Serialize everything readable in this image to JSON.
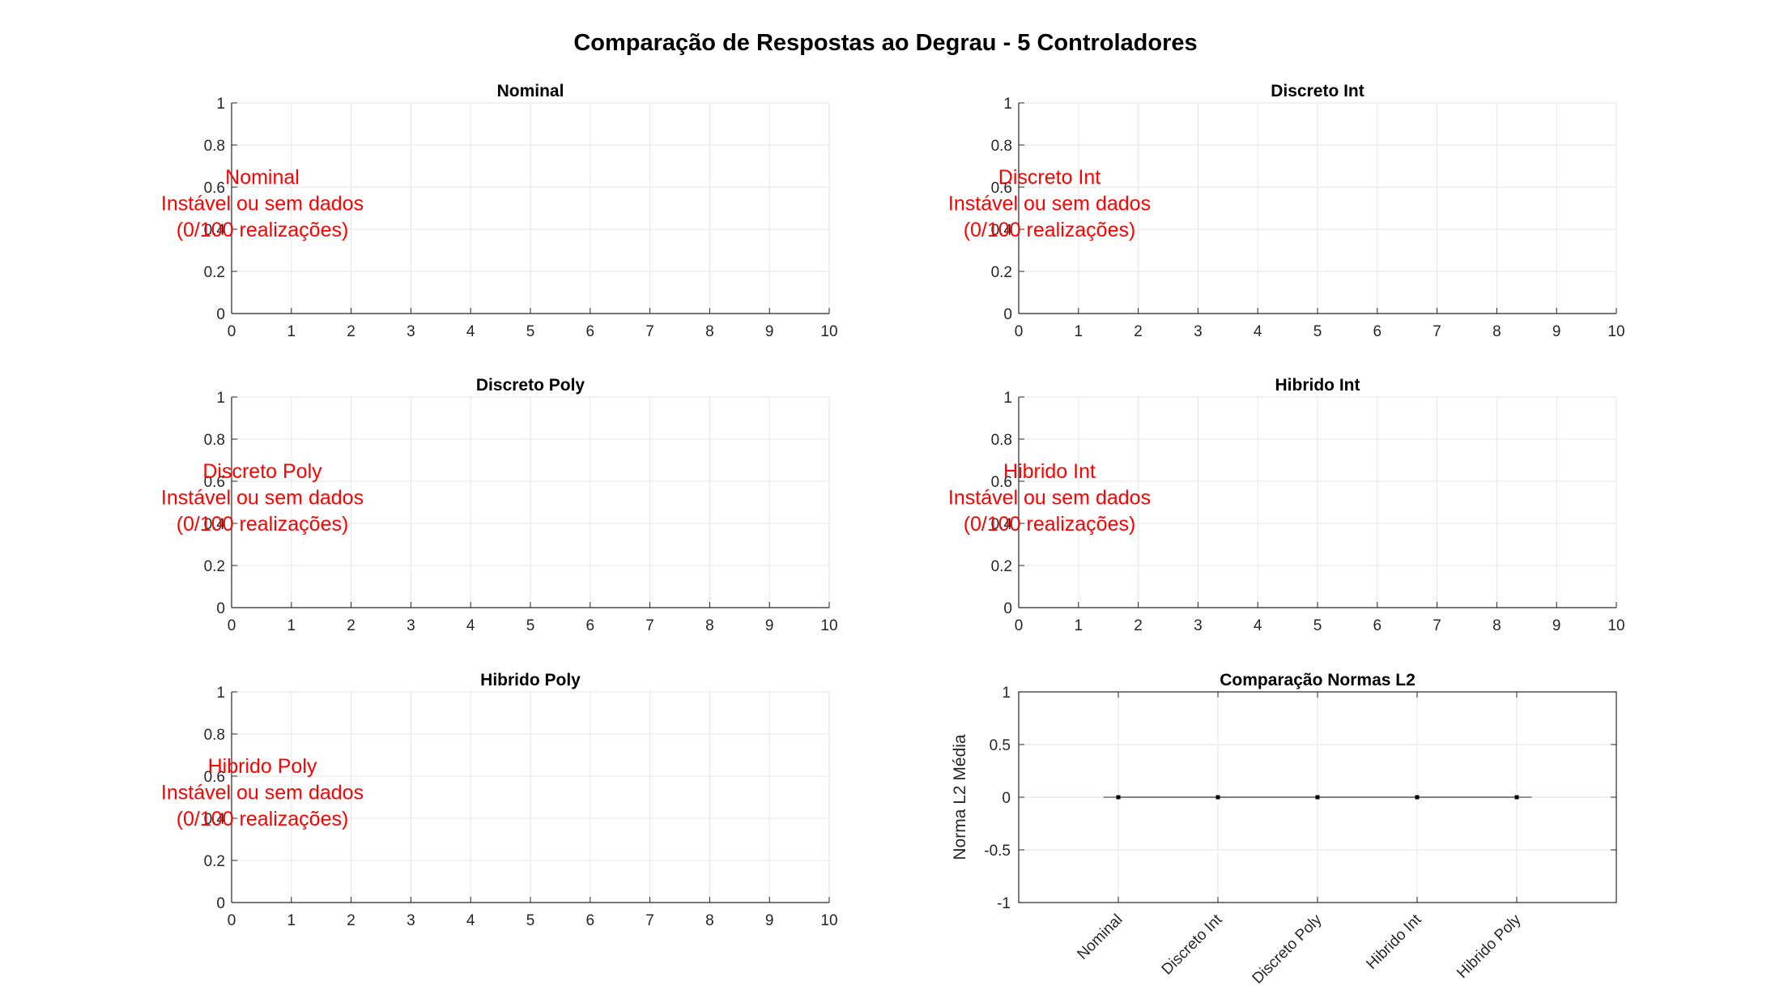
{
  "figure": {
    "title": "Comparação de Respostas ao Degrau - 5 Controladores"
  },
  "chart_data": [
    {
      "type": "line",
      "title": "Nominal",
      "xlim": [
        0,
        10
      ],
      "ylim": [
        0,
        1
      ],
      "xticks": [
        "0",
        "1",
        "2",
        "3",
        "4",
        "5",
        "6",
        "7",
        "8",
        "9",
        "10"
      ],
      "yticks": [
        "0",
        "0.2",
        "0.4",
        "0.6",
        "0.8",
        "1"
      ],
      "grid": true,
      "series": [],
      "message": [
        "Nominal",
        "Instável ou sem dados",
        "(0/100 realizações)"
      ],
      "message_color": "#ff0000"
    },
    {
      "type": "line",
      "title": "Discreto Int",
      "xlim": [
        0,
        10
      ],
      "ylim": [
        0,
        1
      ],
      "xticks": [
        "0",
        "1",
        "2",
        "3",
        "4",
        "5",
        "6",
        "7",
        "8",
        "9",
        "10"
      ],
      "yticks": [
        "0",
        "0.2",
        "0.4",
        "0.6",
        "0.8",
        "1"
      ],
      "grid": true,
      "series": [],
      "message": [
        "Discreto Int",
        "Instável ou sem dados",
        "(0/100 realizações)"
      ],
      "message_color": "#ff0000"
    },
    {
      "type": "line",
      "title": "Discreto Poly",
      "xlim": [
        0,
        10
      ],
      "ylim": [
        0,
        1
      ],
      "xticks": [
        "0",
        "1",
        "2",
        "3",
        "4",
        "5",
        "6",
        "7",
        "8",
        "9",
        "10"
      ],
      "yticks": [
        "0",
        "0.2",
        "0.4",
        "0.6",
        "0.8",
        "1"
      ],
      "grid": true,
      "series": [],
      "message": [
        "Discreto Poly",
        "Instável ou sem dados",
        "(0/100 realizações)"
      ],
      "message_color": "#ff0000"
    },
    {
      "type": "line",
      "title": "Hibrido Int",
      "xlim": [
        0,
        10
      ],
      "ylim": [
        0,
        1
      ],
      "xticks": [
        "0",
        "1",
        "2",
        "3",
        "4",
        "5",
        "6",
        "7",
        "8",
        "9",
        "10"
      ],
      "yticks": [
        "0",
        "0.2",
        "0.4",
        "0.6",
        "0.8",
        "1"
      ],
      "grid": true,
      "series": [],
      "message": [
        "Hibrido Int",
        "Instável ou sem dados",
        "(0/100 realizações)"
      ],
      "message_color": "#ff0000"
    },
    {
      "type": "line",
      "title": "Hibrido Poly",
      "xlim": [
        0,
        10
      ],
      "ylim": [
        0,
        1
      ],
      "xticks": [
        "0",
        "1",
        "2",
        "3",
        "4",
        "5",
        "6",
        "7",
        "8",
        "9",
        "10"
      ],
      "yticks": [
        "0",
        "0.2",
        "0.4",
        "0.6",
        "0.8",
        "1"
      ],
      "grid": true,
      "series": [],
      "message": [
        "Hibrido Poly",
        "Instável ou sem dados",
        "(0/100 realizações)"
      ],
      "message_color": "#ff0000"
    },
    {
      "type": "scatter",
      "title": "Comparação Normas L2",
      "ylabel": "Norma L2 Média",
      "xlim": [
        0,
        6
      ],
      "ylim": [
        -1,
        1
      ],
      "yticks": [
        "-1",
        "-0.5",
        "0",
        "0.5",
        "1"
      ],
      "categories": [
        "Nominal",
        "Discreto Int",
        "Discreto Poly",
        "Hibrido Int",
        "Hibrido Poly"
      ],
      "values": [
        0,
        0,
        0,
        0,
        0
      ],
      "grid": true
    }
  ]
}
